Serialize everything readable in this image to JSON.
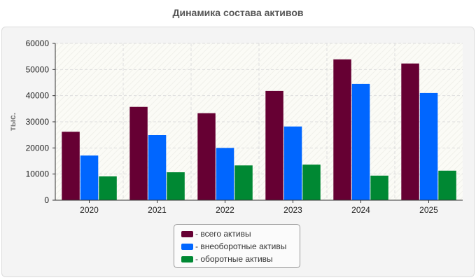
{
  "title": "Динамика состава активов",
  "chart_data": {
    "type": "bar",
    "title": "Динамика состава активов",
    "xlabel": "",
    "ylabel": "тыс.",
    "ylim": [
      0,
      60000
    ],
    "yticks": [
      0,
      10000,
      20000,
      30000,
      40000,
      50000,
      60000
    ],
    "grid": true,
    "legend_position": "bottom",
    "categories": [
      "2020",
      "2021",
      "2022",
      "2023",
      "2024",
      "2025"
    ],
    "series": [
      {
        "name": "- всего активы",
        "color": "#660033",
        "values": [
          26200,
          35700,
          33300,
          41800,
          53900,
          52300
        ]
      },
      {
        "name": "- внеоборотные активы",
        "color": "#0066ff",
        "values": [
          17100,
          24900,
          20000,
          28200,
          44500,
          41000
        ]
      },
      {
        "name": "- оборотные активы",
        "color": "#008833",
        "values": [
          9100,
          10700,
          13300,
          13600,
          9400,
          11300
        ]
      }
    ]
  }
}
